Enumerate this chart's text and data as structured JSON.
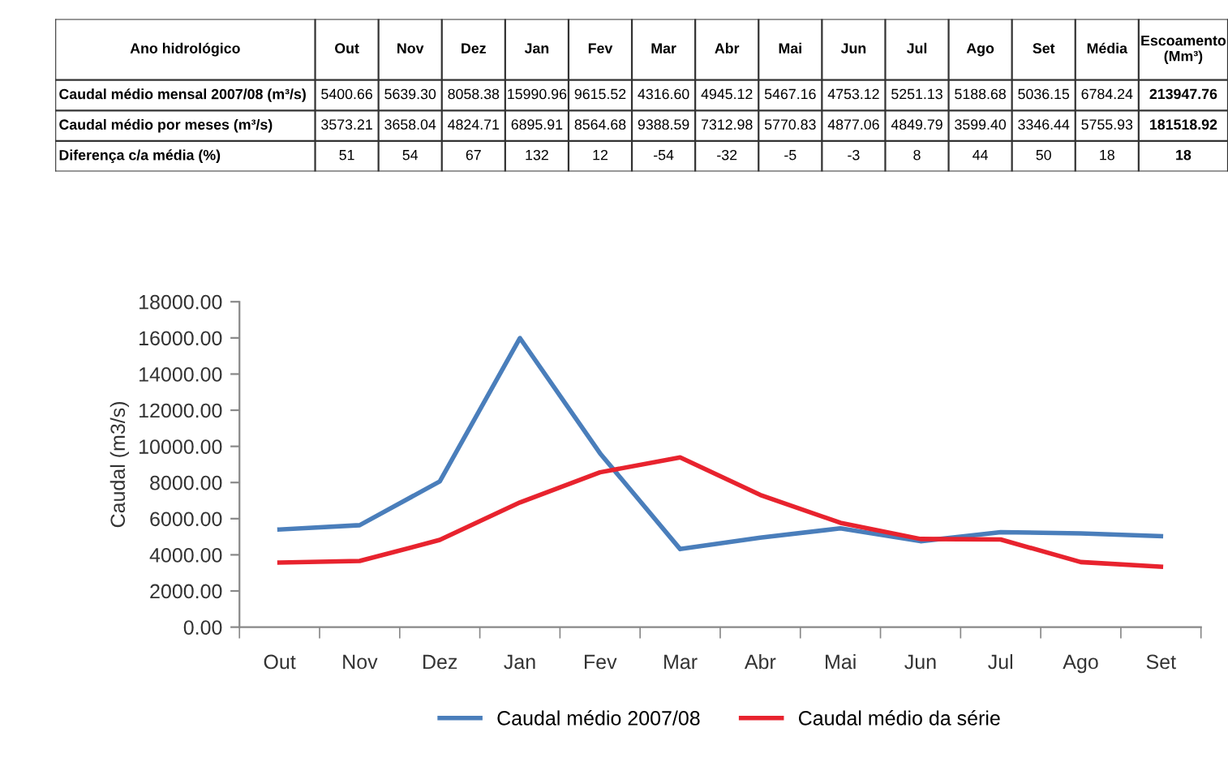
{
  "chart_data": [
    {
      "type": "other",
      "title": "Ano hidrológico",
      "categories": [
        "Out",
        "Nov",
        "Dez",
        "Jan",
        "Fev",
        "Mar",
        "Abr",
        "Mai",
        "Jun",
        "Jul",
        "Ago",
        "Set",
        "Média",
        "Escoamento\n(Mm³)"
      ],
      "y_categories": [
        "Caudal médio mensal 2007/08 (m³/s)",
        "Caudal médio por meses (m³/s)",
        "Diferença c/a média (%)"
      ],
      "cell_labels": [
        [
          "5400.66",
          "5639.30",
          "8058.38",
          "15990.96",
          "9615.52",
          "4316.60",
          "4945.12",
          "5467.16",
          "4753.12",
          "5251.13",
          "5188.68",
          "5036.15",
          "6784.24",
          "213947.76"
        ],
        [
          "3573.21",
          "3658.04",
          "4824.71",
          "6895.91",
          "8564.68",
          "9388.59",
          "7312.98",
          "5770.83",
          "4877.06",
          "4849.79",
          "3599.40",
          "3346.44",
          "5755.93",
          "181518.92"
        ],
        [
          "51",
          "54",
          "67",
          "132",
          "12",
          "-54",
          "-32",
          "-5",
          "-3",
          "8",
          "44",
          "50",
          "18",
          "18"
        ]
      ]
    },
    {
      "type": "line",
      "ylabel": "Caudal (m3/s)",
      "categories": [
        "Out",
        "Nov",
        "Dez",
        "Jan",
        "Fev",
        "Mar",
        "Abr",
        "Mai",
        "Jun",
        "Jul",
        "Ago",
        "Set"
      ],
      "series": [
        {
          "name": "Caudal médio 2007/08",
          "color": "#4a7ebb",
          "values": [
            5400.66,
            5639.3,
            8058.38,
            15990.96,
            9615.52,
            4316.6,
            4945.12,
            5467.16,
            4753.12,
            5251.13,
            5188.68,
            5036.15
          ]
        },
        {
          "name": "Caudal médio da série",
          "color": "#e8232e",
          "values": [
            3573.21,
            3658.04,
            4824.71,
            6895.91,
            8564.68,
            9388.59,
            7312.98,
            5770.83,
            4877.06,
            4849.79,
            3599.4,
            3346.44
          ]
        }
      ],
      "ylim": [
        0,
        18000
      ],
      "yticks": [
        {
          "value": 0,
          "label": "0.00"
        },
        {
          "value": 2000,
          "label": "2000.00"
        },
        {
          "value": 4000,
          "label": "4000.00"
        },
        {
          "value": 6000,
          "label": "6000.00"
        },
        {
          "value": 8000,
          "label": "8000.00"
        },
        {
          "value": 10000,
          "label": "10000.00"
        },
        {
          "value": 12000,
          "label": "12000.00"
        },
        {
          "value": 14000,
          "label": "14000.00"
        },
        {
          "value": 16000,
          "label": "16000.00"
        },
        {
          "value": 18000,
          "label": "18000.00"
        }
      ],
      "legend": "bottom",
      "grid": false,
      "marker": "none",
      "line_style": "solid"
    }
  ]
}
